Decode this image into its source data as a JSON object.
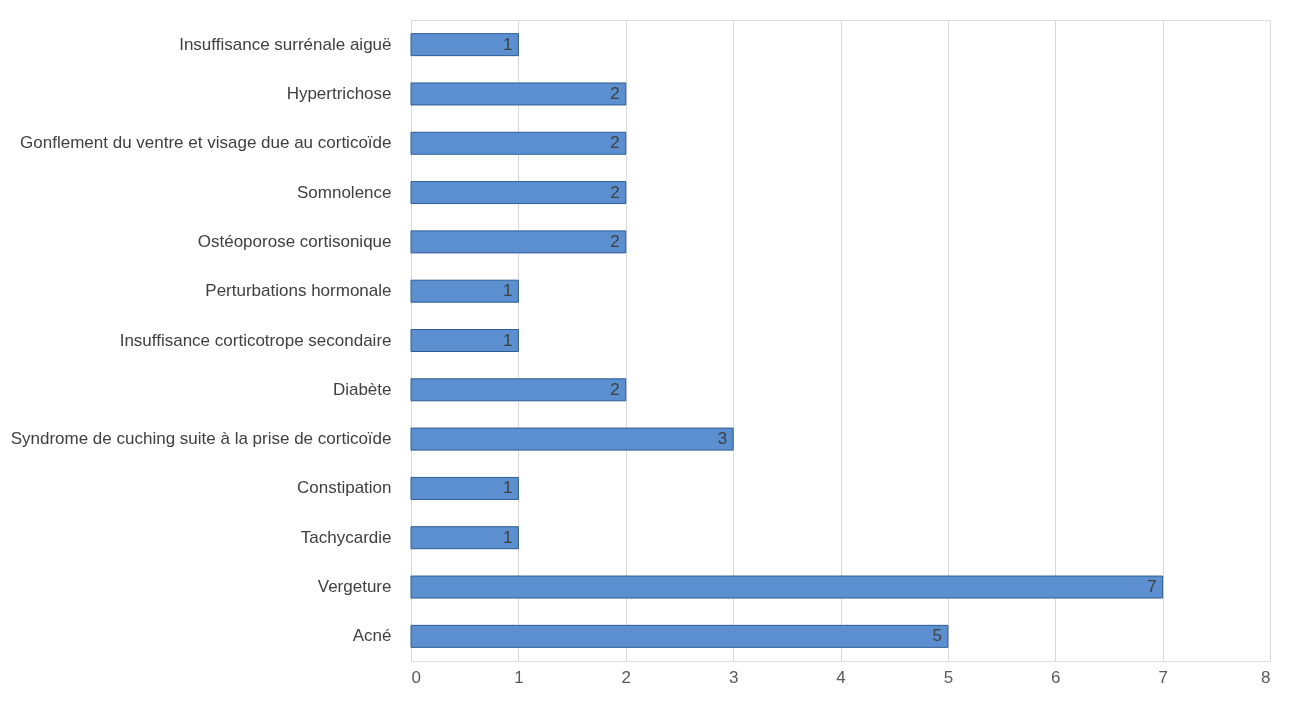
{
  "chart_data": {
    "type": "bar",
    "orientation": "horizontal",
    "categories": [
      "Insuffisance surrénale aiguë",
      "Hypertrichose",
      "Gonflement du ventre et visage due au corticoïde",
      "Somnolence",
      "Ostéoporose cortisonique",
      "Perturbations hormonale",
      "Insuffisance corticotrope secondaire",
      "Diabète",
      "Syndrome de cuching suite à la prise de corticoïde",
      "Constipation",
      "Tachycardie",
      "Vergeture",
      "Acné"
    ],
    "values": [
      1,
      2,
      2,
      2,
      2,
      1,
      1,
      2,
      3,
      1,
      1,
      7,
      5
    ],
    "color": "#5b8fd0",
    "xlim": [
      0,
      8
    ],
    "xticks": [
      0,
      1,
      2,
      3,
      4,
      5,
      6,
      7,
      8
    ],
    "grid": "x",
    "data_labels": true
  }
}
